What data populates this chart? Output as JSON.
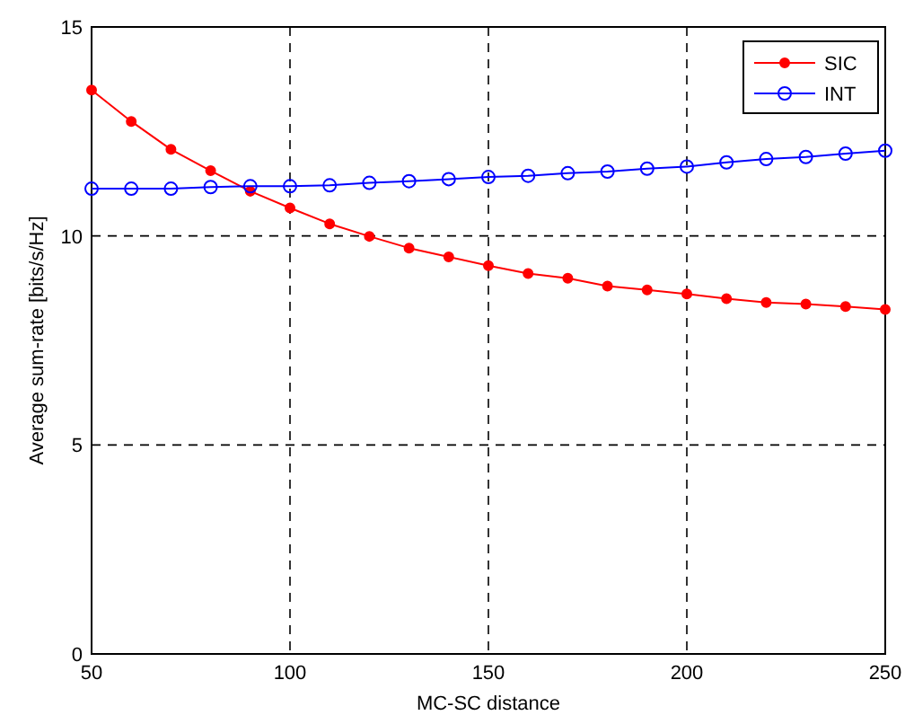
{
  "chart_data": {
    "type": "line",
    "xlabel": "MC-SC distance",
    "ylabel": "Average sum-rate [bits/s/Hz]",
    "x": [
      50,
      60,
      70,
      80,
      90,
      100,
      110,
      120,
      130,
      140,
      150,
      160,
      170,
      180,
      190,
      200,
      210,
      220,
      230,
      240,
      250
    ],
    "series": [
      {
        "name": "SIC",
        "color": "#ff0000",
        "marker": "circle",
        "values": [
          13.49,
          12.74,
          12.07,
          11.56,
          11.07,
          10.67,
          10.29,
          9.99,
          9.71,
          9.5,
          9.29,
          9.1,
          8.99,
          8.8,
          8.71,
          8.61,
          8.5,
          8.41,
          8.37,
          8.31,
          8.24
        ]
      },
      {
        "name": "INT",
        "color": "#0000ff",
        "marker": "open_circle",
        "values": [
          11.13,
          11.13,
          11.13,
          11.17,
          11.19,
          11.19,
          11.21,
          11.27,
          11.31,
          11.36,
          11.41,
          11.44,
          11.5,
          11.54,
          11.61,
          11.66,
          11.76,
          11.84,
          11.89,
          11.97,
          12.04
        ]
      }
    ],
    "xlim": [
      50,
      250
    ],
    "xticks": [
      50,
      100,
      150,
      200,
      250
    ],
    "ylim": [
      0,
      15
    ],
    "yticks": [
      0,
      5,
      10,
      15
    ],
    "grid": true,
    "legend": "top right",
    "line_style": "solid"
  }
}
